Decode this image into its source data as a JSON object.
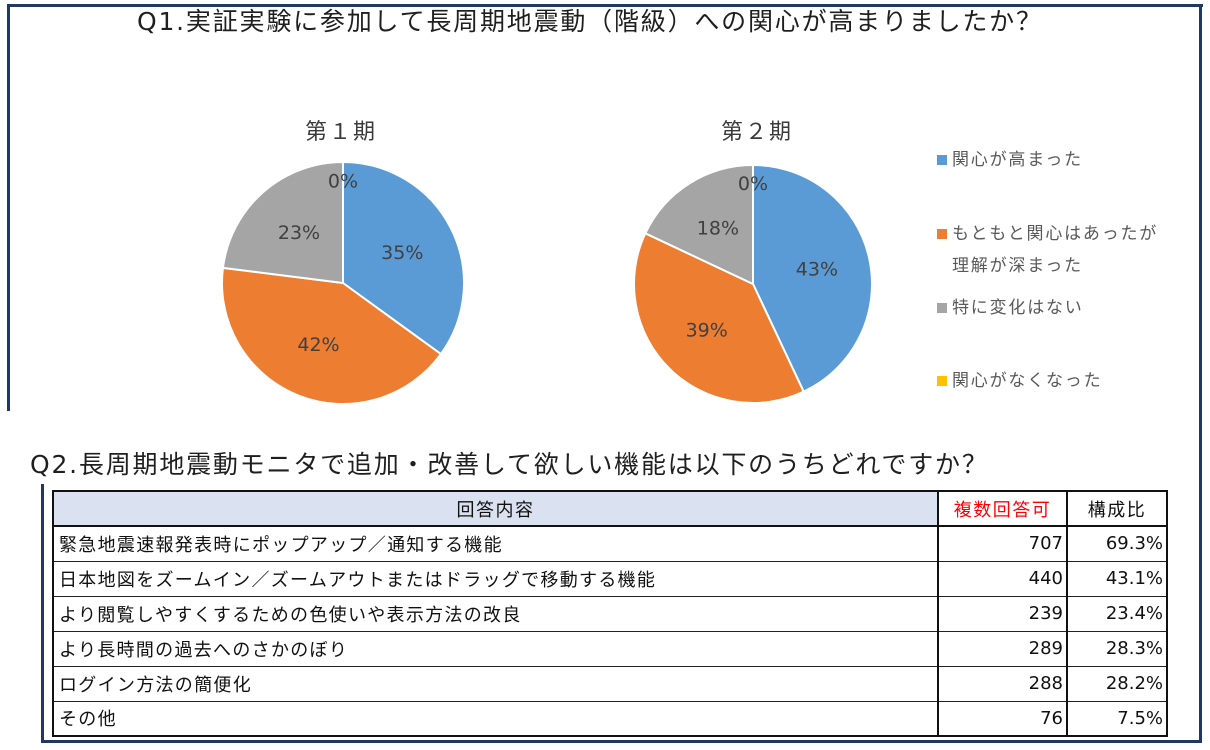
{
  "chart_data": [
    {
      "type": "pie",
      "title": "Q1.実証実験に参加して長周期地震動（階級）への関心が高まりましたか？",
      "categories": [
        "関心が高まった",
        "もともと関心はあったが理解が深まった",
        "特に変化はない",
        "関心がなくなった"
      ],
      "colors": [
        "#5B9BD5",
        "#ED7D31",
        "#A5A5A5",
        "#FFC000"
      ],
      "legend": "right",
      "series": [
        {
          "name": "第１期",
          "values": [
            35,
            42,
            23,
            0
          ],
          "labels": [
            "35%",
            "42%",
            "23%",
            "0%"
          ]
        },
        {
          "name": "第２期",
          "values": [
            43,
            39,
            18,
            0
          ],
          "labels": [
            "43%",
            "39%",
            "18%",
            "0%"
          ]
        }
      ]
    },
    {
      "type": "table",
      "title": "Q2.長周期地震動モニタで追加・改善して欲しい機能は以下のうちどれですか？",
      "columns": [
        "回答内容",
        "複数回答可",
        "構成比"
      ],
      "header_fill": "#DAE1F0",
      "emphasis_color": "#FF0000",
      "rows": [
        [
          "緊急地震速報発表時にポップアップ／通知する機能",
          707,
          "69.3%"
        ],
        [
          "日本地図をズームイン／ズームアウトまたはドラッグで移動する機能",
          440,
          "43.1%"
        ],
        [
          "より閲覧しやすくするための色使いや表示方法の改良",
          239,
          "23.4%"
        ],
        [
          "より長時間の過去へのさかのぼり",
          289,
          "28.3%"
        ],
        [
          "ログイン方法の簡便化",
          288,
          "28.2%"
        ],
        [
          "その他",
          76,
          "7.5%"
        ]
      ]
    }
  ]
}
